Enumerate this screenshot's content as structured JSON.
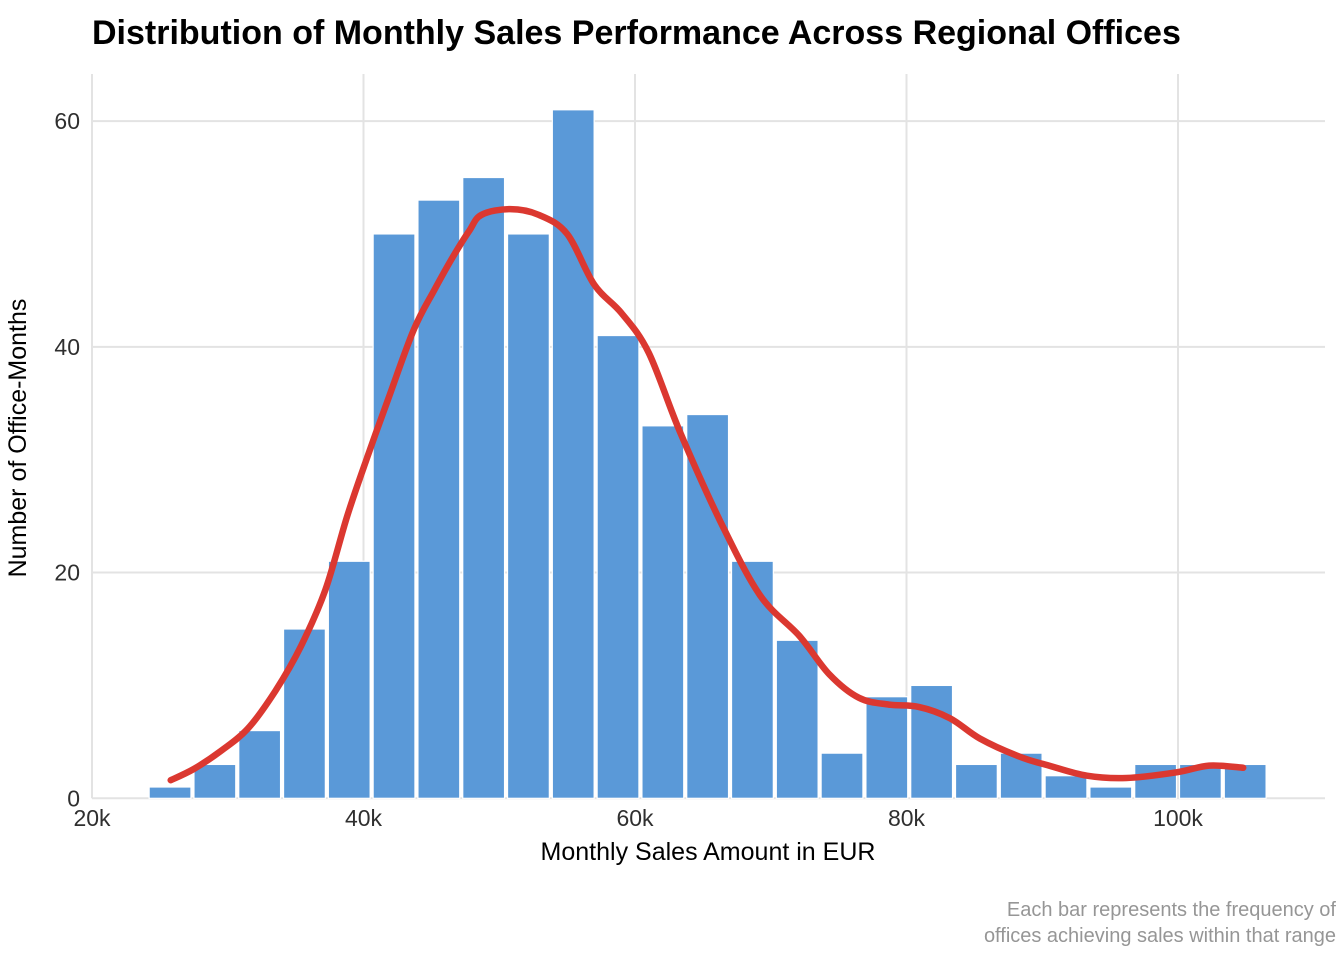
{
  "title": "Distribution of Monthly Sales Performance Across Regional Offices",
  "caption": {
    "line1": "Each bar represents the frequency of",
    "line2": "offices achieving sales within that range"
  },
  "chart_data": {
    "type": "bar",
    "subtype": "histogram_with_density_curve",
    "title": "Distribution of Monthly Sales Performance Across Regional Offices",
    "xlabel": "Monthly Sales Amount in EUR",
    "ylabel": "Number of Office-Months",
    "x_ticks": [
      {
        "value_k": 20,
        "label": "20k"
      },
      {
        "value_k": 40,
        "label": "40k"
      },
      {
        "value_k": 60,
        "label": "60k"
      },
      {
        "value_k": 80,
        "label": "80k"
      },
      {
        "value_k": 100,
        "label": "100k"
      }
    ],
    "y_ticks": [
      {
        "value": 0,
        "label": "0"
      },
      {
        "value": 20,
        "label": "20"
      },
      {
        "value": 40,
        "label": "40"
      },
      {
        "value": 60,
        "label": "60"
      }
    ],
    "xlim_k": [
      20,
      110.8
    ],
    "ylim": [
      0,
      64
    ],
    "grid": true,
    "legend": false,
    "histogram": {
      "bin_start_k": 24.1,
      "bin_width_k": 3.3,
      "counts": [
        1,
        3,
        6,
        15,
        21,
        50,
        53,
        55,
        50,
        61,
        41,
        33,
        34,
        21,
        14,
        4,
        9,
        10,
        3,
        4,
        2,
        1,
        3,
        3,
        3
      ],
      "total_observations": 500
    },
    "density_curve_points": [
      [
        25.8,
        1.6
      ],
      [
        27.5,
        2.6
      ],
      [
        29.5,
        4.2
      ],
      [
        31.5,
        6.2
      ],
      [
        33.5,
        9.5
      ],
      [
        35.4,
        13.5
      ],
      [
        37.2,
        18.5
      ],
      [
        38.8,
        25.0
      ],
      [
        40.3,
        30.3
      ],
      [
        41.8,
        35.3
      ],
      [
        43.7,
        41.5
      ],
      [
        45.2,
        45.0
      ],
      [
        46.6,
        48.0
      ],
      [
        47.8,
        50.3
      ],
      [
        48.7,
        51.7
      ],
      [
        50.8,
        52.2
      ],
      [
        52.9,
        51.7
      ],
      [
        55.0,
        50.0
      ],
      [
        57.0,
        45.5
      ],
      [
        59.0,
        43.0
      ],
      [
        61.0,
        39.5
      ],
      [
        63.3,
        32.5
      ],
      [
        66.3,
        24.5
      ],
      [
        69.2,
        18.0
      ],
      [
        72.1,
        14.4
      ],
      [
        74.3,
        11.0
      ],
      [
        76.5,
        8.9
      ],
      [
        78.7,
        8.3
      ],
      [
        80.9,
        8.1
      ],
      [
        83.2,
        7.1
      ],
      [
        85.4,
        5.3
      ],
      [
        88.3,
        3.7
      ],
      [
        90.5,
        2.9
      ],
      [
        93.3,
        2.0
      ],
      [
        96.2,
        1.8
      ],
      [
        99.9,
        2.3
      ],
      [
        102.3,
        2.9
      ],
      [
        104.8,
        2.7
      ]
    ],
    "colors": {
      "bar_fill": "#5A99D8",
      "bar_border": "#FFFFFF",
      "density_curve": "#DB3830",
      "gridline": "#E3E3E3",
      "tick_label": "#2F2F2F",
      "title": "#000000",
      "caption": "#969696",
      "background": "#FFFFFF"
    }
  }
}
